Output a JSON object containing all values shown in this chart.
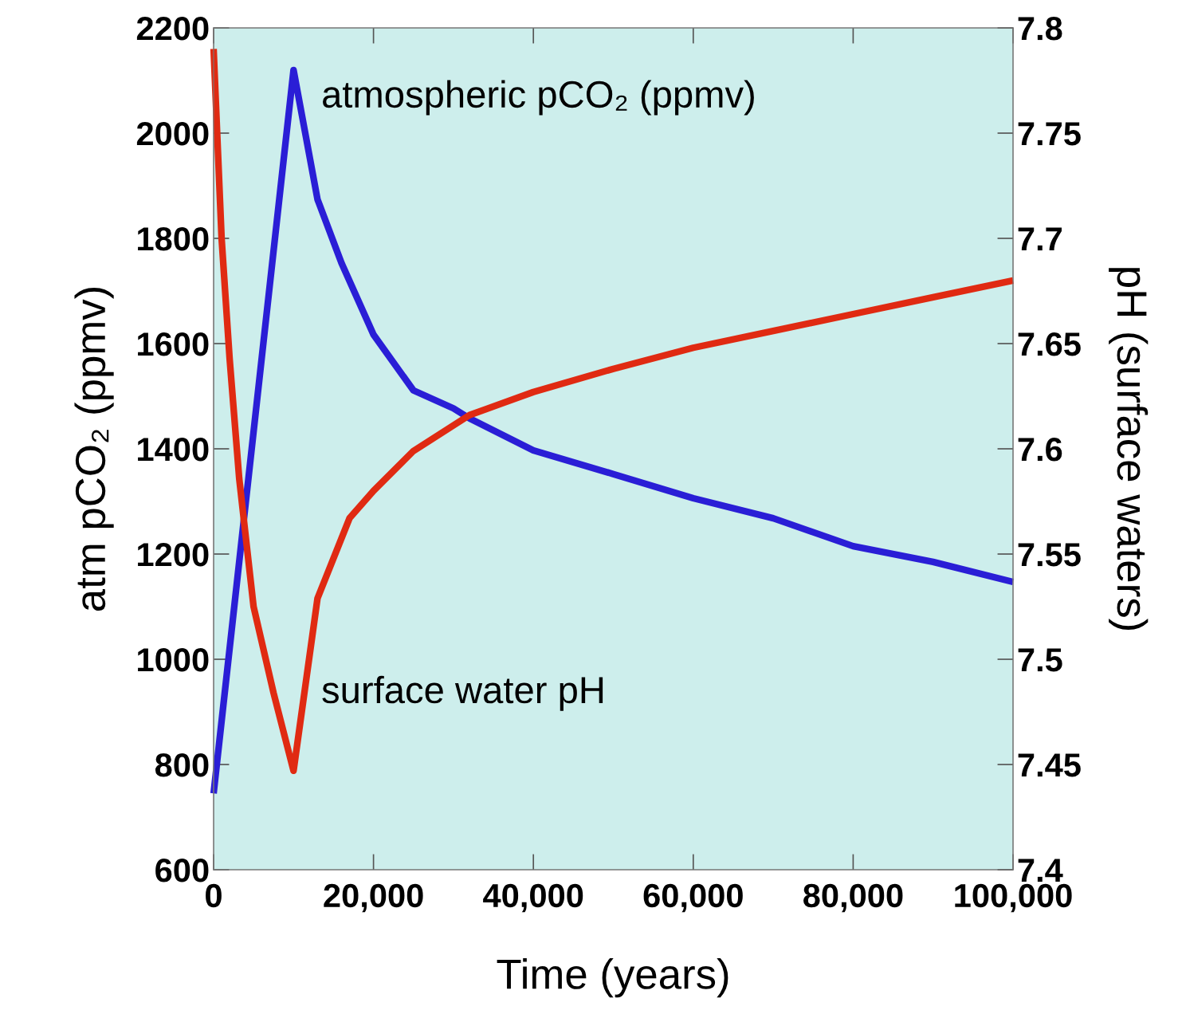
{
  "chart_data": {
    "type": "line",
    "xlabel": "Time (years)",
    "ylabel": "atm pCO₂ (ppmv)",
    "y2label": "pH (surface waters)",
    "xlim": [
      0,
      100000
    ],
    "xticks": [
      0,
      {
        "value": 20000,
        "label": "20,000"
      },
      {
        "value": 40000,
        "label": "40,000"
      },
      {
        "value": 60000,
        "label": "60,000"
      },
      {
        "value": 80000,
        "label": "80,000"
      },
      {
        "value": 100000,
        "label": "100,000"
      }
    ],
    "ylim": [
      600,
      2200
    ],
    "yticks": [
      600,
      800,
      1000,
      1200,
      1400,
      1600,
      1800,
      2000,
      2200
    ],
    "y2lim": [
      7.4,
      7.8
    ],
    "y2ticks": [
      7.4,
      7.45,
      7.5,
      7.55,
      7.6,
      7.65,
      7.7,
      7.75,
      7.8
    ],
    "grid": false,
    "legend": false,
    "marker": "none",
    "line_style": "solid",
    "series": [
      {
        "name": "atmospheric pCO₂ (ppmv)",
        "color": "#2a1ed6",
        "x": [
          0,
          10000,
          13000,
          16000,
          20000,
          25000,
          30000,
          32000,
          40000,
          50000,
          60000,
          70000,
          80000,
          90000,
          100000
        ],
        "values": [
          745,
          2120,
          1874,
          1753,
          1617,
          1511,
          1477,
          1458,
          1397,
          1352,
          1306,
          1268,
          1215,
          1185,
          1147
        ]
      },
      {
        "name": "surface water pH",
        "color": "#e02a12",
        "axis": "y2",
        "x": [
          0,
          1000,
          2000,
          3200,
          5000,
          7500,
          10000,
          13000,
          17000,
          20000,
          25000,
          32000,
          40000,
          50000,
          60000,
          70000,
          80000,
          90000,
          100000
        ],
        "values": [
          7.79,
          7.7,
          7.643,
          7.586,
          7.525,
          7.484,
          7.447,
          7.529,
          7.567,
          7.58,
          7.599,
          7.616,
          7.627,
          7.638,
          7.648,
          7.656,
          7.664,
          7.672,
          7.68
        ]
      }
    ]
  }
}
